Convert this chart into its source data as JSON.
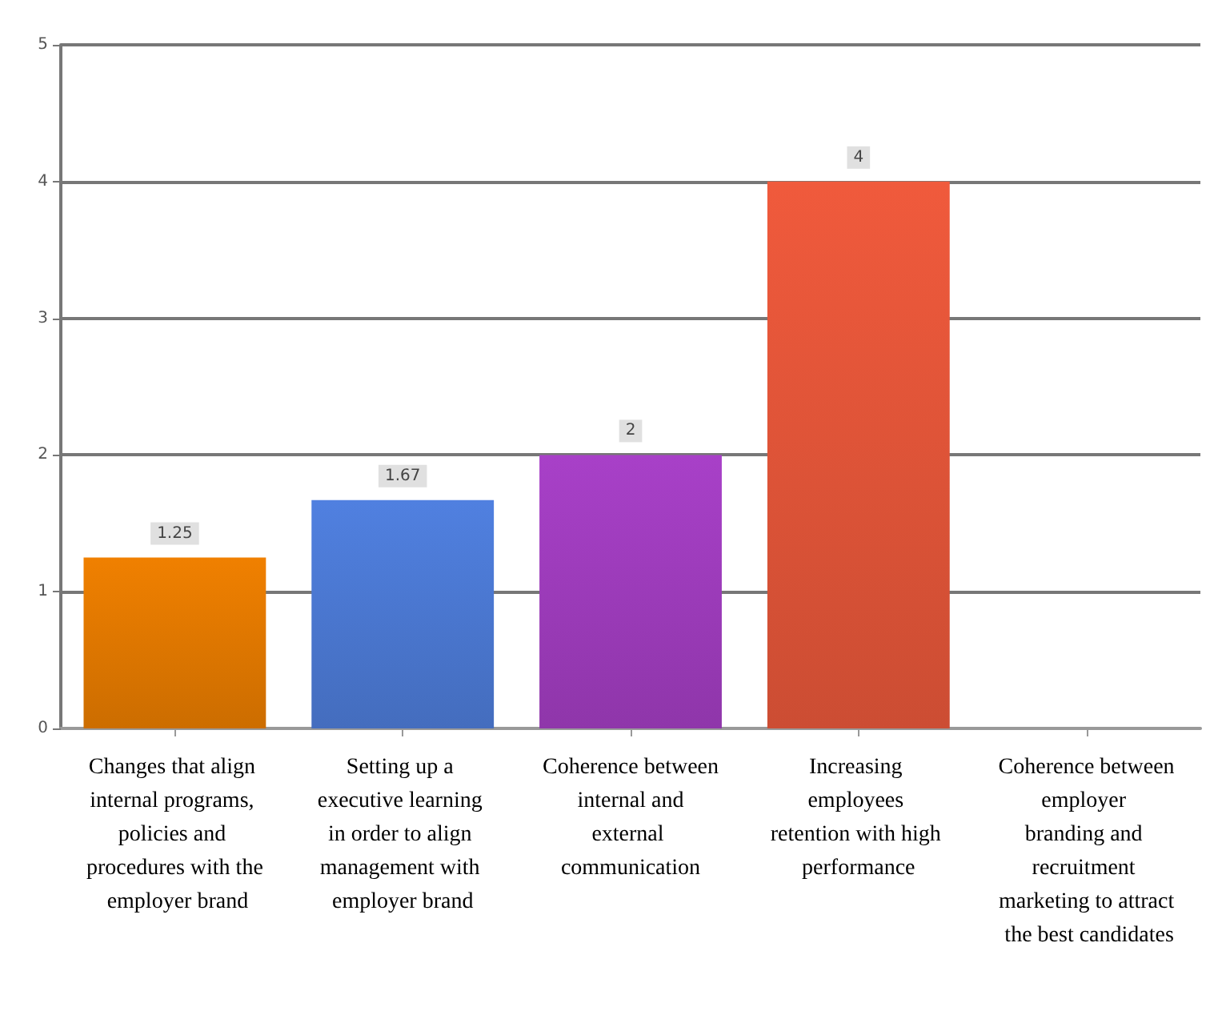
{
  "chart_data": {
    "type": "bar",
    "categories": [
      "Changes that align internal programs, policies and procedures with the employer brand",
      "Setting up a executive learning in order to align management with employer brand",
      "Coherence between internal and external communication",
      "Increasing employees retention with high performance",
      "Coherence between employer  branding and recruitment marketing to attract the best candidates"
    ],
    "values": [
      1.25,
      1.67,
      2,
      4,
      null
    ],
    "colors": [
      "#f08000",
      "#5080e0",
      "#a840c8",
      "#f05a3c",
      null
    ],
    "ylim": [
      0,
      5
    ],
    "yticks": [
      0,
      1,
      2,
      3,
      4,
      5
    ],
    "grid": "y",
    "data_labels": true
  }
}
